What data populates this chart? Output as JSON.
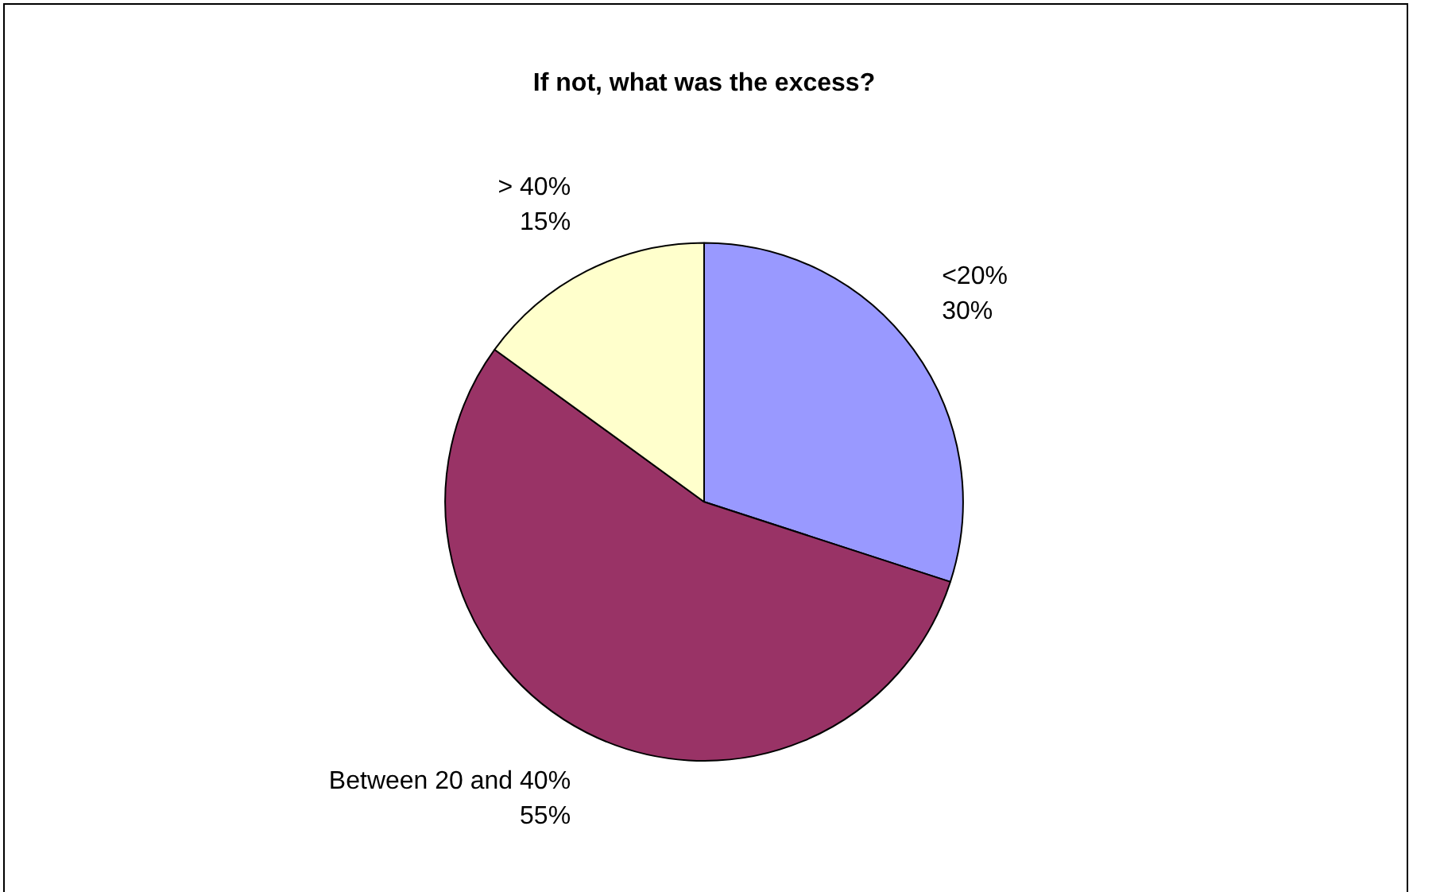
{
  "chart_data": {
    "type": "pie",
    "title": "If not, what was the excess?",
    "categories": [
      "<20%",
      "Between 20 and 40%",
      "> 40%"
    ],
    "values": [
      30,
      55,
      15
    ],
    "colors": [
      "#9999ff",
      "#993366",
      "#ffffcc"
    ],
    "value_labels": [
      "30%",
      "55%",
      "15%"
    ],
    "legend": false
  }
}
